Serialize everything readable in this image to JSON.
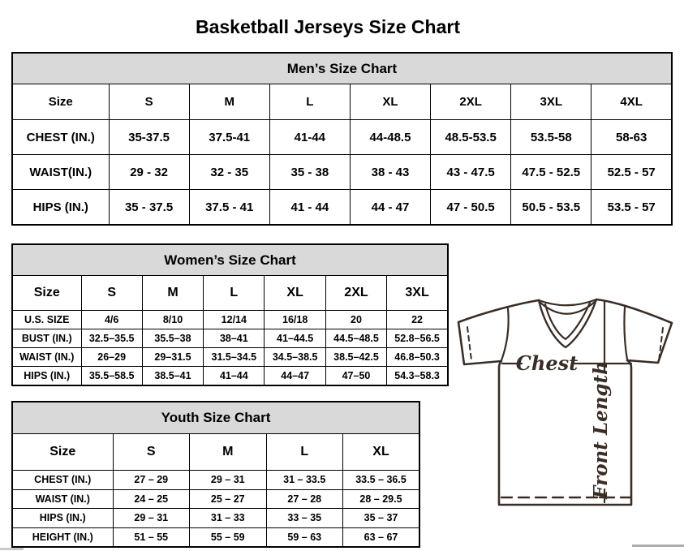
{
  "page_title": "Basketball Jerseys Size Chart",
  "tables": {
    "men": {
      "title": "Men’s Size Chart",
      "size_label": "Size",
      "columns": [
        "S",
        "M",
        "L",
        "XL",
        "2XL",
        "3XL",
        "4XL"
      ],
      "rows": [
        {
          "label": "CHEST (IN.)",
          "values": [
            "35-37.5",
            "37.5-41",
            "41-44",
            "44-48.5",
            "48.5-53.5",
            "53.5-58",
            "58-63"
          ]
        },
        {
          "label": "WAIST(IN.)",
          "values": [
            "29 - 32",
            "32 - 35",
            "35 - 38",
            "38 - 43",
            "43 - 47.5",
            "47.5 - 52.5",
            "52.5 - 57"
          ]
        },
        {
          "label": "HIPS (IN.)",
          "values": [
            "35 - 37.5",
            "37.5 - 41",
            "41 - 44",
            "44 - 47",
            "47 - 50.5",
            "50.5 - 53.5",
            "53.5 - 57"
          ]
        }
      ]
    },
    "women": {
      "title": "Women’s Size Chart",
      "size_label": "Size",
      "columns": [
        "S",
        "M",
        "L",
        "XL",
        "2XL",
        "3XL"
      ],
      "rows": [
        {
          "label": "U.S. SIZE",
          "values": [
            "4/6",
            "8/10",
            "12/14",
            "16/18",
            "20",
            "22"
          ]
        },
        {
          "label": "BUST (IN.)",
          "values": [
            "32.5–35.5",
            "35.5–38",
            "38–41",
            "41–44.5",
            "44.5–48.5",
            "52.8–56.5"
          ]
        },
        {
          "label": "WAIST (IN.)",
          "values": [
            "26–29",
            "29–31.5",
            "31.5–34.5",
            "34.5–38.5",
            "38.5–42.5",
            "46.8–50.3"
          ]
        },
        {
          "label": "HIPS (IN.)",
          "values": [
            "35.5–58.5",
            "38.5–41",
            "41–44",
            "44–47",
            "47–50",
            "54.3–58.3"
          ]
        }
      ]
    },
    "youth": {
      "title": "Youth Size Chart",
      "size_label": "Size",
      "columns": [
        "S",
        "M",
        "L",
        "XL"
      ],
      "rows": [
        {
          "label": "CHEST (IN.)",
          "values": [
            "27 – 29",
            "29 – 31",
            "31 – 33.5",
            "33.5 – 36.5"
          ]
        },
        {
          "label": "WAIST (IN.)",
          "values": [
            "24 – 25",
            "25 – 27",
            "27 – 28",
            "28 – 29.5"
          ]
        },
        {
          "label": "HIPS (IN.)",
          "values": [
            "29 – 31",
            "31 – 33",
            "33 – 35",
            "35 – 37"
          ]
        },
        {
          "label": "HEIGHT (IN.)",
          "values": [
            "51 – 55",
            "55 – 59",
            "59 – 63",
            "63 – 67"
          ]
        }
      ]
    }
  },
  "diagram": {
    "chest_label": "Chest",
    "front_length_label": "Front Length",
    "line_color": "#3a2d26"
  },
  "colors": {
    "table_header_bg": "#d9d9d9",
    "table_border": "#000000",
    "page_bg": "#ffffff"
  }
}
